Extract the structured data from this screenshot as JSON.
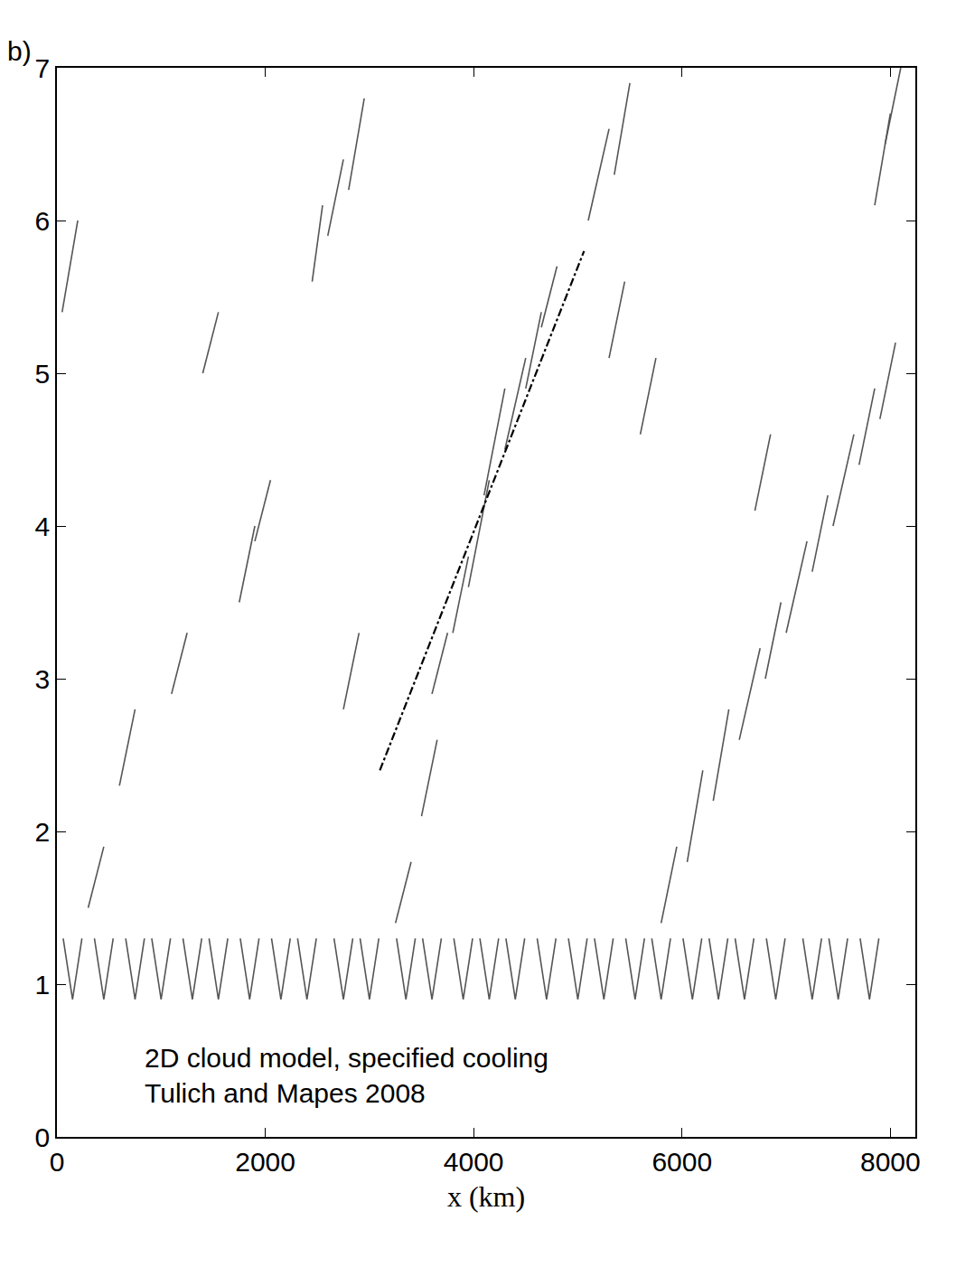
{
  "chart_data": {
    "type": "line",
    "panel_label": "b)",
    "x_label": "x (km)",
    "annotation": [
      "2D cloud model, specified cooling",
      "Tulich and Mapes 2008"
    ],
    "xlim": [
      0,
      8240
    ],
    "xticks": [
      0,
      2000,
      4000,
      6000,
      8000
    ],
    "ylim": [
      0,
      7
    ],
    "yticks": [
      0,
      1,
      2,
      3,
      4,
      5,
      6,
      7
    ],
    "grid": false,
    "streaks": {
      "color": "#555555",
      "lines": [
        {
          "x": [
            60,
            150,
            240
          ],
          "y": [
            1.3,
            0.9,
            1.3
          ]
        },
        {
          "x": [
            360,
            450,
            540
          ],
          "y": [
            1.3,
            0.9,
            1.3
          ]
        },
        {
          "x": [
            660,
            750,
            840
          ],
          "y": [
            1.3,
            0.9,
            1.3
          ]
        },
        {
          "x": [
            910,
            1000,
            1090
          ],
          "y": [
            1.3,
            0.9,
            1.3
          ]
        },
        {
          "x": [
            1210,
            1300,
            1390
          ],
          "y": [
            1.3,
            0.9,
            1.3
          ]
        },
        {
          "x": [
            1460,
            1550,
            1640
          ],
          "y": [
            1.3,
            0.9,
            1.3
          ]
        },
        {
          "x": [
            1760,
            1850,
            1940
          ],
          "y": [
            1.3,
            0.9,
            1.3
          ]
        },
        {
          "x": [
            2060,
            2150,
            2240
          ],
          "y": [
            1.3,
            0.9,
            1.3
          ]
        },
        {
          "x": [
            2310,
            2400,
            2490
          ],
          "y": [
            1.3,
            0.9,
            1.3
          ]
        },
        {
          "x": [
            2660,
            2750,
            2840
          ],
          "y": [
            1.3,
            0.9,
            1.3
          ]
        },
        {
          "x": [
            2910,
            3000,
            3090
          ],
          "y": [
            1.3,
            0.9,
            1.3
          ]
        },
        {
          "x": [
            3260,
            3350,
            3440
          ],
          "y": [
            1.3,
            0.9,
            1.3
          ]
        },
        {
          "x": [
            3510,
            3600,
            3690
          ],
          "y": [
            1.3,
            0.9,
            1.3
          ]
        },
        {
          "x": [
            3810,
            3900,
            3990
          ],
          "y": [
            1.3,
            0.9,
            1.3
          ]
        },
        {
          "x": [
            4060,
            4150,
            4240
          ],
          "y": [
            1.3,
            0.9,
            1.3
          ]
        },
        {
          "x": [
            4310,
            4400,
            4490
          ],
          "y": [
            1.3,
            0.9,
            1.3
          ]
        },
        {
          "x": [
            4610,
            4700,
            4790
          ],
          "y": [
            1.3,
            0.9,
            1.3
          ]
        },
        {
          "x": [
            4910,
            5000,
            5090
          ],
          "y": [
            1.3,
            0.9,
            1.3
          ]
        },
        {
          "x": [
            5160,
            5250,
            5340
          ],
          "y": [
            1.3,
            0.9,
            1.3
          ]
        },
        {
          "x": [
            5460,
            5550,
            5640
          ],
          "y": [
            1.3,
            0.9,
            1.3
          ]
        },
        {
          "x": [
            5710,
            5800,
            5890
          ],
          "y": [
            1.3,
            0.9,
            1.3
          ]
        },
        {
          "x": [
            6010,
            6100,
            6190
          ],
          "y": [
            1.3,
            0.9,
            1.3
          ]
        },
        {
          "x": [
            6260,
            6350,
            6440
          ],
          "y": [
            1.3,
            0.9,
            1.3
          ]
        },
        {
          "x": [
            6510,
            6600,
            6690
          ],
          "y": [
            1.3,
            0.9,
            1.3
          ]
        },
        {
          "x": [
            6810,
            6900,
            6990
          ],
          "y": [
            1.3,
            0.9,
            1.3
          ]
        },
        {
          "x": [
            7160,
            7250,
            7340
          ],
          "y": [
            1.3,
            0.9,
            1.3
          ]
        },
        {
          "x": [
            7410,
            7500,
            7590
          ],
          "y": [
            1.3,
            0.9,
            1.3
          ]
        },
        {
          "x": [
            7710,
            7800,
            7890
          ],
          "y": [
            1.3,
            0.9,
            1.3
          ]
        },
        {
          "x": [
            3500,
            3650
          ],
          "y": [
            2.1,
            2.6
          ]
        },
        {
          "x": [
            3600,
            3750
          ],
          "y": [
            2.9,
            3.3
          ]
        },
        {
          "x": [
            3800,
            3950
          ],
          "y": [
            3.3,
            3.8
          ]
        },
        {
          "x": [
            3950,
            4150
          ],
          "y": [
            3.6,
            4.3
          ]
        },
        {
          "x": [
            4100,
            4300
          ],
          "y": [
            4.2,
            4.9
          ]
        },
        {
          "x": [
            4300,
            4500
          ],
          "y": [
            4.5,
            5.1
          ]
        },
        {
          "x": [
            4500,
            4650
          ],
          "y": [
            4.9,
            5.4
          ]
        },
        {
          "x": [
            4650,
            4800
          ],
          "y": [
            5.3,
            5.7
          ]
        },
        {
          "x": [
            3250,
            3400
          ],
          "y": [
            1.4,
            1.8
          ]
        },
        {
          "x": [
            2450,
            2550
          ],
          "y": [
            5.6,
            6.1
          ]
        },
        {
          "x": [
            2600,
            2750
          ],
          "y": [
            5.9,
            6.4
          ]
        },
        {
          "x": [
            2800,
            2950
          ],
          "y": [
            6.2,
            6.8
          ]
        },
        {
          "x": [
            1400,
            1550
          ],
          "y": [
            5.0,
            5.4
          ]
        },
        {
          "x": [
            1750,
            1900
          ],
          "y": [
            3.5,
            4.0
          ]
        },
        {
          "x": [
            1900,
            2050
          ],
          "y": [
            3.9,
            4.3
          ]
        },
        {
          "x": [
            600,
            750
          ],
          "y": [
            2.3,
            2.8
          ]
        },
        {
          "x": [
            300,
            450
          ],
          "y": [
            1.5,
            1.9
          ]
        },
        {
          "x": [
            50,
            200
          ],
          "y": [
            5.4,
            6.0
          ]
        },
        {
          "x": [
            5100,
            5300
          ],
          "y": [
            6.0,
            6.6
          ]
        },
        {
          "x": [
            5350,
            5500
          ],
          "y": [
            6.3,
            6.9
          ]
        },
        {
          "x": [
            5300,
            5450
          ],
          "y": [
            5.1,
            5.6
          ]
        },
        {
          "x": [
            5800,
            5950
          ],
          "y": [
            1.4,
            1.9
          ]
        },
        {
          "x": [
            6050,
            6200
          ],
          "y": [
            1.8,
            2.4
          ]
        },
        {
          "x": [
            6300,
            6450
          ],
          "y": [
            2.2,
            2.8
          ]
        },
        {
          "x": [
            6550,
            6750
          ],
          "y": [
            2.6,
            3.2
          ]
        },
        {
          "x": [
            6800,
            6950
          ],
          "y": [
            3.0,
            3.5
          ]
        },
        {
          "x": [
            7000,
            7200
          ],
          "y": [
            3.3,
            3.9
          ]
        },
        {
          "x": [
            7250,
            7400
          ],
          "y": [
            3.7,
            4.2
          ]
        },
        {
          "x": [
            7450,
            7650
          ],
          "y": [
            4.0,
            4.6
          ]
        },
        {
          "x": [
            7700,
            7850
          ],
          "y": [
            4.4,
            4.9
          ]
        },
        {
          "x": [
            7900,
            8050
          ],
          "y": [
            4.7,
            5.2
          ]
        },
        {
          "x": [
            7850,
            8000
          ],
          "y": [
            6.1,
            6.7
          ]
        },
        {
          "x": [
            7950,
            8100
          ],
          "y": [
            6.5,
            7.0
          ]
        },
        {
          "x": [
            6700,
            6850
          ],
          "y": [
            4.1,
            4.6
          ]
        },
        {
          "x": [
            5600,
            5750
          ],
          "y": [
            4.6,
            5.1
          ]
        },
        {
          "x": [
            2750,
            2900
          ],
          "y": [
            2.8,
            3.3
          ]
        },
        {
          "x": [
            1100,
            1250
          ],
          "y": [
            2.9,
            3.3
          ]
        }
      ]
    },
    "reference_line": {
      "x": [
        3100,
        5060
      ],
      "y": [
        2.4,
        5.8
      ],
      "color": "#000000",
      "line_style": "dashdot"
    }
  }
}
